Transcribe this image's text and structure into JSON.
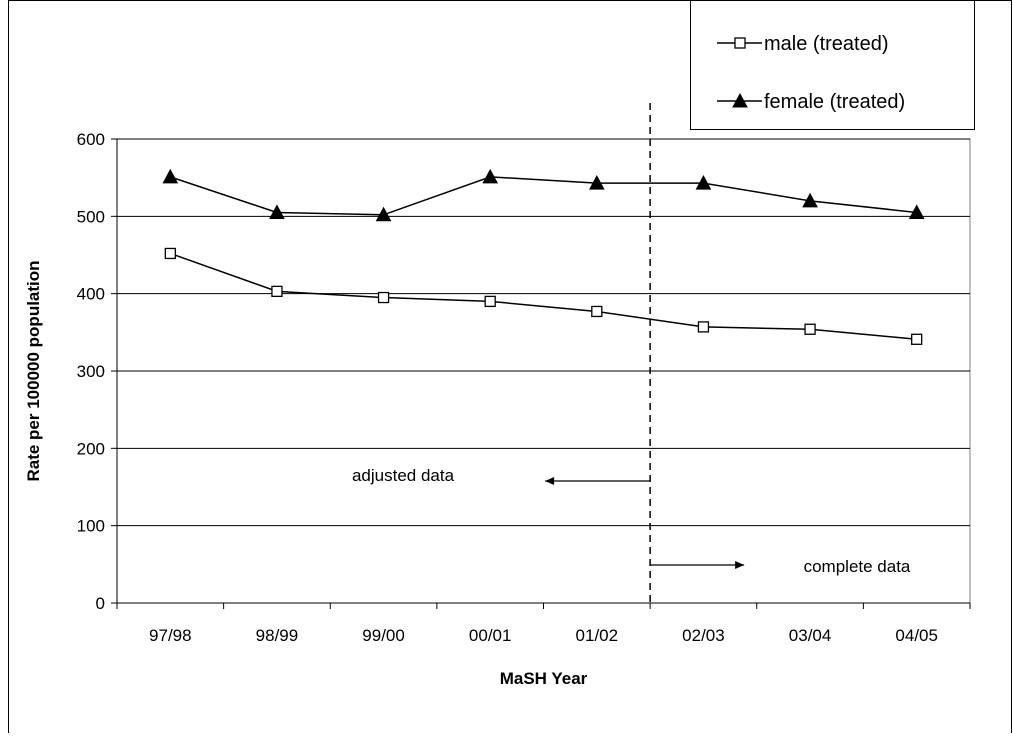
{
  "chart_data": {
    "type": "line",
    "title": "",
    "xlabel": "MaSH Year",
    "ylabel": "Rate per 100000 population",
    "categories": [
      "97/98",
      "98/99",
      "99/00",
      "00/01",
      "01/02",
      "02/03",
      "03/04",
      "04/05"
    ],
    "ylim": [
      0,
      600
    ],
    "yticks": [
      0,
      100,
      200,
      300,
      400,
      500,
      600
    ],
    "grid": true,
    "legend_position": "top-right",
    "series": [
      {
        "name": "male (treated)",
        "marker": "open-square",
        "color": "#000000",
        "values": [
          452,
          403,
          395,
          390,
          377,
          357,
          354,
          341
        ]
      },
      {
        "name": "female (treated)",
        "marker": "filled-triangle",
        "color": "#000000",
        "values": [
          551,
          505,
          502,
          551,
          543,
          543,
          520,
          505
        ]
      }
    ],
    "divider_between": [
      "01/02",
      "02/03"
    ],
    "annotations": {
      "left_label": "adjusted data",
      "right_label": "complete data"
    },
    "plot_background": "#ffffff",
    "gridline_color": "#000000"
  }
}
